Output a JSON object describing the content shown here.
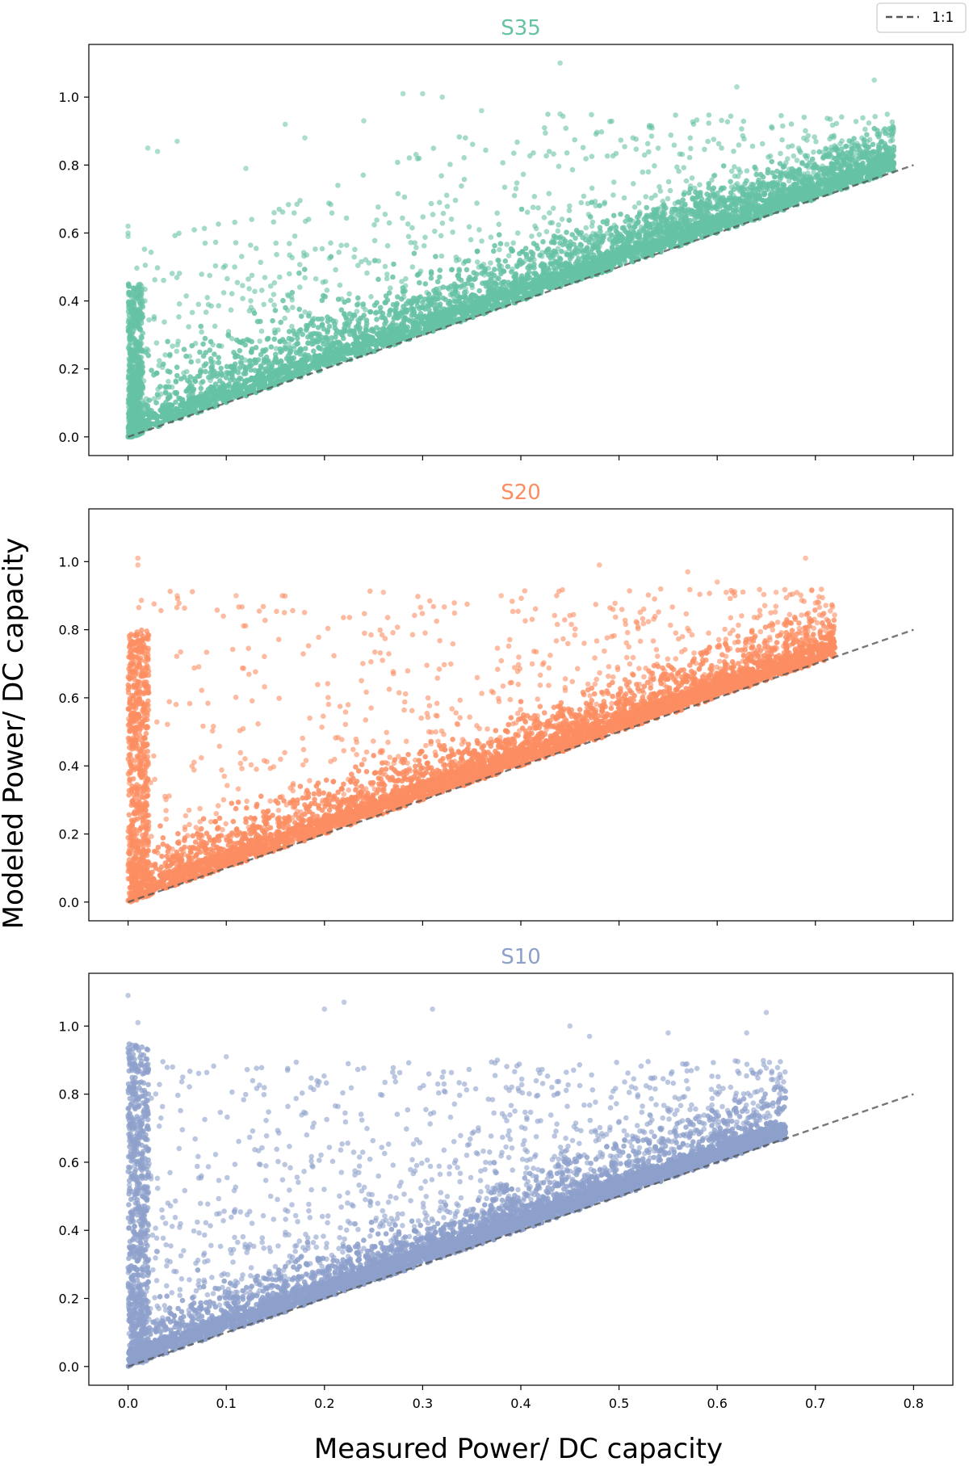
{
  "figure": {
    "xlabel": "Measured Power/ DC capacity",
    "ylabel": "Modeled Power/ DC capacity",
    "legend": {
      "placement": "top-right",
      "label": "1:1",
      "style": "dashed",
      "color": "#555555"
    }
  },
  "chart_data": [
    {
      "type": "scatter",
      "title": "S35",
      "color": "#66c2a5",
      "xlim": [
        -0.04,
        0.84
      ],
      "ylim": [
        -0.055,
        1.155
      ],
      "xticks": [
        "0.0",
        "0.1",
        "0.2",
        "0.3",
        "0.4",
        "0.5",
        "0.6",
        "0.7",
        "0.8"
      ],
      "yticks": [
        "0.0",
        "0.2",
        "0.4",
        "0.6",
        "0.8",
        "1.0"
      ],
      "xtick_labels_visible": false,
      "max_measured": 0.78,
      "reference_line": {
        "label": "1:1",
        "x": [
          0.0,
          0.8
        ],
        "y": [
          0.0,
          0.8
        ]
      },
      "outliers": [
        [
          0.44,
          1.1
        ],
        [
          0.28,
          1.01
        ],
        [
          0.3,
          1.01
        ],
        [
          0.32,
          1.0
        ],
        [
          0.62,
          1.03
        ],
        [
          0.76,
          1.05
        ],
        [
          0.0,
          0.6
        ],
        [
          0.0,
          0.62
        ],
        [
          0.0,
          0.59
        ],
        [
          0.02,
          0.85
        ],
        [
          0.03,
          0.84
        ],
        [
          0.05,
          0.87
        ],
        [
          0.12,
          0.79
        ],
        [
          0.18,
          0.88
        ],
        [
          0.16,
          0.92
        ],
        [
          0.24,
          0.93
        ],
        [
          0.36,
          0.96
        ],
        [
          0.44,
          0.95
        ]
      ]
    },
    {
      "type": "scatter",
      "title": "S20",
      "color": "#fc8d62",
      "xlim": [
        -0.04,
        0.84
      ],
      "ylim": [
        -0.055,
        1.155
      ],
      "xticks": [
        "0.0",
        "0.1",
        "0.2",
        "0.3",
        "0.4",
        "0.5",
        "0.6",
        "0.7",
        "0.8"
      ],
      "yticks": [
        "0.0",
        "0.2",
        "0.4",
        "0.6",
        "0.8",
        "1.0"
      ],
      "xtick_labels_visible": false,
      "max_measured": 0.72,
      "reference_line": {
        "label": "1:1",
        "x": [
          0.0,
          0.8
        ],
        "y": [
          0.0,
          0.8
        ]
      },
      "outliers": [
        [
          0.01,
          1.01
        ],
        [
          0.01,
          0.99
        ],
        [
          0.69,
          1.01
        ],
        [
          0.48,
          0.99
        ],
        [
          0.57,
          0.97
        ],
        [
          0.05,
          0.9
        ],
        [
          0.11,
          0.9
        ],
        [
          0.26,
          0.91
        ],
        [
          0.38,
          0.9
        ],
        [
          0.6,
          0.94
        ],
        [
          0.66,
          0.91
        ]
      ]
    },
    {
      "type": "scatter",
      "title": "S10",
      "color": "#8da0cb",
      "xlim": [
        -0.04,
        0.84
      ],
      "ylim": [
        -0.055,
        1.155
      ],
      "xticks": [
        "0.0",
        "0.1",
        "0.2",
        "0.3",
        "0.4",
        "0.5",
        "0.6",
        "0.7",
        "0.8"
      ],
      "yticks": [
        "0.0",
        "0.2",
        "0.4",
        "0.6",
        "0.8",
        "1.0"
      ],
      "xtick_labels_visible": true,
      "max_measured": 0.67,
      "reference_line": {
        "label": "1:1",
        "x": [
          0.0,
          0.8
        ],
        "y": [
          0.0,
          0.8
        ]
      },
      "outliers": [
        [
          0.0,
          1.09
        ],
        [
          0.22,
          1.07
        ],
        [
          0.2,
          1.05
        ],
        [
          0.31,
          1.05
        ],
        [
          0.65,
          1.04
        ],
        [
          0.01,
          1.01
        ],
        [
          0.1,
          0.91
        ],
        [
          0.45,
          1.0
        ],
        [
          0.47,
          0.97
        ],
        [
          0.55,
          0.98
        ],
        [
          0.63,
          0.98
        ]
      ]
    }
  ]
}
